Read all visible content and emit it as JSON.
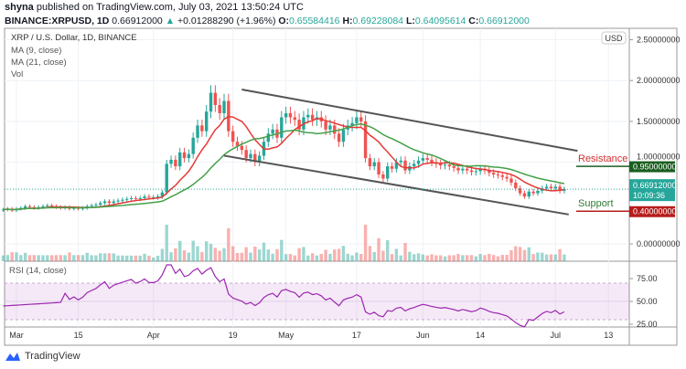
{
  "header": {
    "author": "shyna",
    "published": "published on TradingView.com, July 03, 2021 13:50:24 UTC",
    "symbol": "BINANCE:XRPUSD, 1D",
    "last": "0.66912000",
    "change": "+0.01288290 (+1.96%)",
    "o_label": "O:",
    "o": "0.65584416",
    "h_label": "H:",
    "h": "0.69228084",
    "l_label": "L:",
    "l": "0.64095614",
    "c_label": "C:",
    "c": "0.66912000"
  },
  "legend": {
    "title": "XRP / U.S. Dollar, 1D, BINANCE",
    "ma9": "MA (9, close)",
    "ma21": "MA (21, close)",
    "vol": "Vol",
    "rsi": "RSI (14, close)"
  },
  "currency": "USD",
  "countdown": "10:09:36",
  "brand": "TradingView",
  "colors": {
    "up": "#26a69a",
    "down": "#ef5350",
    "ma9": "#e53935",
    "ma21": "#43a047",
    "rsi": "#9c27b0",
    "resistance": "#1b5e20",
    "support": "#b71c1c"
  },
  "chart_data": {
    "type": "candlestick",
    "title": "XRP / U.S. Dollar, 1D, BINANCE",
    "start_date": "2021-02-26",
    "closes": [
      0.42,
      0.43,
      0.41,
      0.43,
      0.44,
      0.46,
      0.45,
      0.44,
      0.45,
      0.46,
      0.47,
      0.46,
      0.45,
      0.44,
      0.45,
      0.43,
      0.44,
      0.43,
      0.44,
      0.46,
      0.47,
      0.48,
      0.5,
      0.52,
      0.5,
      0.52,
      0.53,
      0.54,
      0.55,
      0.56,
      0.55,
      0.56,
      0.58,
      0.57,
      0.57,
      0.58,
      0.63,
      0.98,
      1.03,
      0.95,
      1.12,
      1.05,
      1.1,
      1.3,
      1.45,
      1.38,
      1.62,
      1.85,
      1.7,
      1.6,
      1.75,
      1.38,
      1.25,
      1.2,
      1.15,
      1.05,
      1.1,
      1.0,
      1.08,
      1.25,
      1.35,
      1.4,
      1.3,
      1.55,
      1.6,
      1.55,
      1.52,
      1.4,
      1.55,
      1.58,
      1.52,
      1.55,
      1.5,
      1.4,
      1.45,
      1.35,
      1.25,
      1.4,
      1.45,
      1.48,
      1.55,
      1.5,
      1.05,
      0.95,
      1.0,
      0.85,
      0.8,
      0.95,
      0.92,
      1.0,
      1.02,
      0.9,
      0.95,
      0.98,
      1.02,
      1.05,
      1.03,
      1.0,
      0.98,
      0.96,
      0.97,
      0.95,
      0.93,
      0.9,
      0.92,
      0.9,
      0.88,
      0.89,
      0.92,
      0.9,
      0.87,
      0.85,
      0.84,
      0.82,
      0.8,
      0.75,
      0.68,
      0.62,
      0.58,
      0.64,
      0.62,
      0.65,
      0.68,
      0.7,
      0.68,
      0.7,
      0.65,
      0.669
    ],
    "price_ticks": [
      "2.50000000",
      "2.00000000",
      "1.50000000",
      "1.00000000",
      "0.00000000"
    ],
    "price_tick_values": [
      2.5,
      2.0,
      1.5,
      1.0,
      0.0
    ],
    "ylim": [
      0,
      2.6
    ],
    "rsi_ticks": [
      "75.00",
      "50.00",
      "25.00"
    ],
    "rsi_band": [
      30,
      70
    ],
    "x_ticks": [
      {
        "label": "Mar",
        "date": "2021-03-01"
      },
      {
        "label": "15",
        "date": "2021-03-15"
      },
      {
        "label": "Apr",
        "date": "2021-04-01"
      },
      {
        "label": "19",
        "date": "2021-04-19"
      },
      {
        "label": "May",
        "date": "2021-05-01"
      },
      {
        "label": "17",
        "date": "2021-05-17"
      },
      {
        "label": "Jun",
        "date": "2021-06-01"
      },
      {
        "label": "14",
        "date": "2021-06-14"
      },
      {
        "label": "Jul",
        "date": "2021-07-01"
      },
      {
        "label": "13",
        "date": "2021-07-13"
      }
    ],
    "channel": {
      "upper": [
        [
          "2021-04-21",
          1.89
        ],
        [
          "2021-07-06",
          1.14
        ]
      ],
      "lower": [
        [
          "2021-04-17",
          1.08
        ],
        [
          "2021-07-04",
          0.36
        ]
      ]
    },
    "levels": [
      {
        "label": "Resistance",
        "value": 0.95,
        "tag": "0.95000000"
      },
      {
        "label": "Support",
        "value": 0.4,
        "tag": "0.40000000"
      }
    ],
    "last_price": {
      "value": 0.66912,
      "tag": "0.66912000"
    },
    "grid": true
  }
}
